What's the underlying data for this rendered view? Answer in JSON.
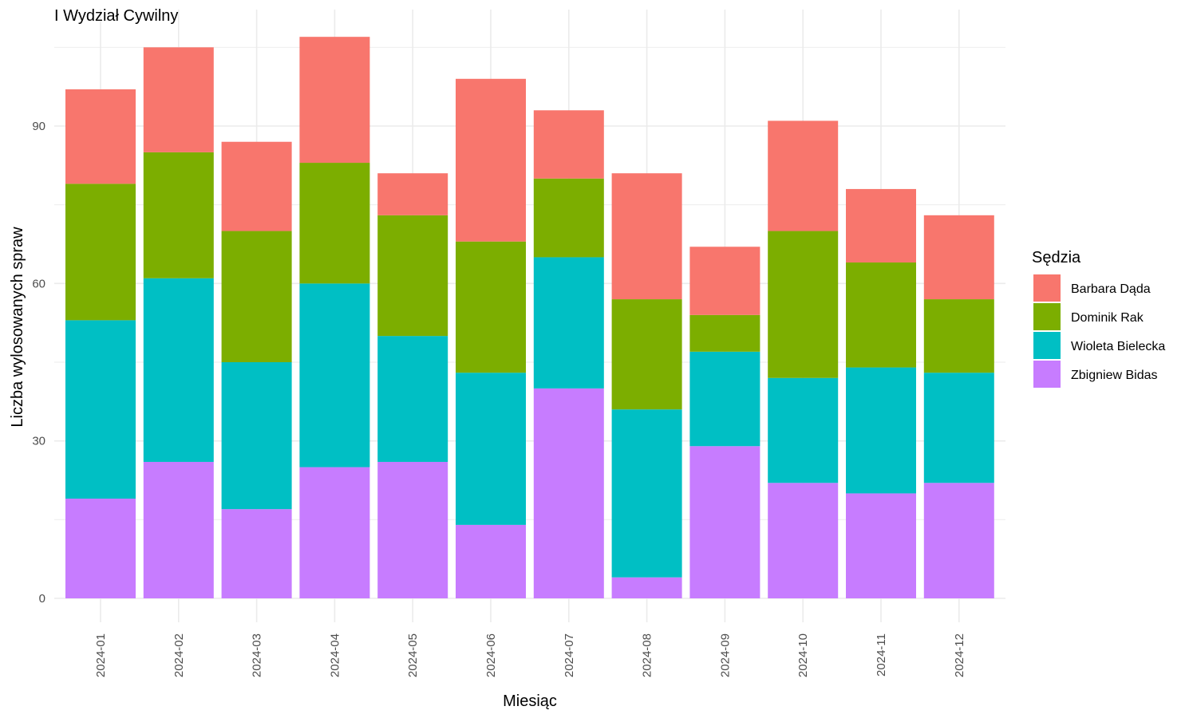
{
  "chart_data": {
    "type": "bar",
    "stacked": true,
    "title": "I Wydział Cywilny",
    "xlabel": "Miesiąc",
    "ylabel": "Liczba wylosowanych spraw",
    "categories": [
      "2024-01",
      "2024-02",
      "2024-03",
      "2024-04",
      "2024-05",
      "2024-06",
      "2024-07",
      "2024-08",
      "2024-09",
      "2024-10",
      "2024-11",
      "2024-12"
    ],
    "ylim": [
      0,
      112
    ],
    "yticks": [
      0,
      30,
      60,
      90
    ],
    "grid": true,
    "legend": {
      "title": "Sędzia",
      "position": "right"
    },
    "series": [
      {
        "name": "Zbigniew Bidas",
        "color": "#C77CFF",
        "values": [
          19,
          26,
          17,
          25,
          26,
          14,
          40,
          4,
          29,
          22,
          20,
          22
        ]
      },
      {
        "name": "Wioleta Bielecka",
        "color": "#00BFC4",
        "values": [
          34,
          35,
          28,
          35,
          24,
          29,
          25,
          32,
          18,
          20,
          24,
          21
        ]
      },
      {
        "name": "Dominik Rak",
        "color": "#7CAE00",
        "values": [
          26,
          24,
          25,
          23,
          23,
          25,
          15,
          21,
          7,
          28,
          20,
          14
        ]
      },
      {
        "name": "Barbara Dąda",
        "color": "#F8766D",
        "values": [
          18,
          20,
          17,
          24,
          8,
          31,
          13,
          24,
          13,
          21,
          14,
          16
        ]
      }
    ],
    "legend_order": [
      "Barbara Dąda",
      "Dominik Rak",
      "Wioleta Bielecka",
      "Zbigniew Bidas"
    ]
  }
}
